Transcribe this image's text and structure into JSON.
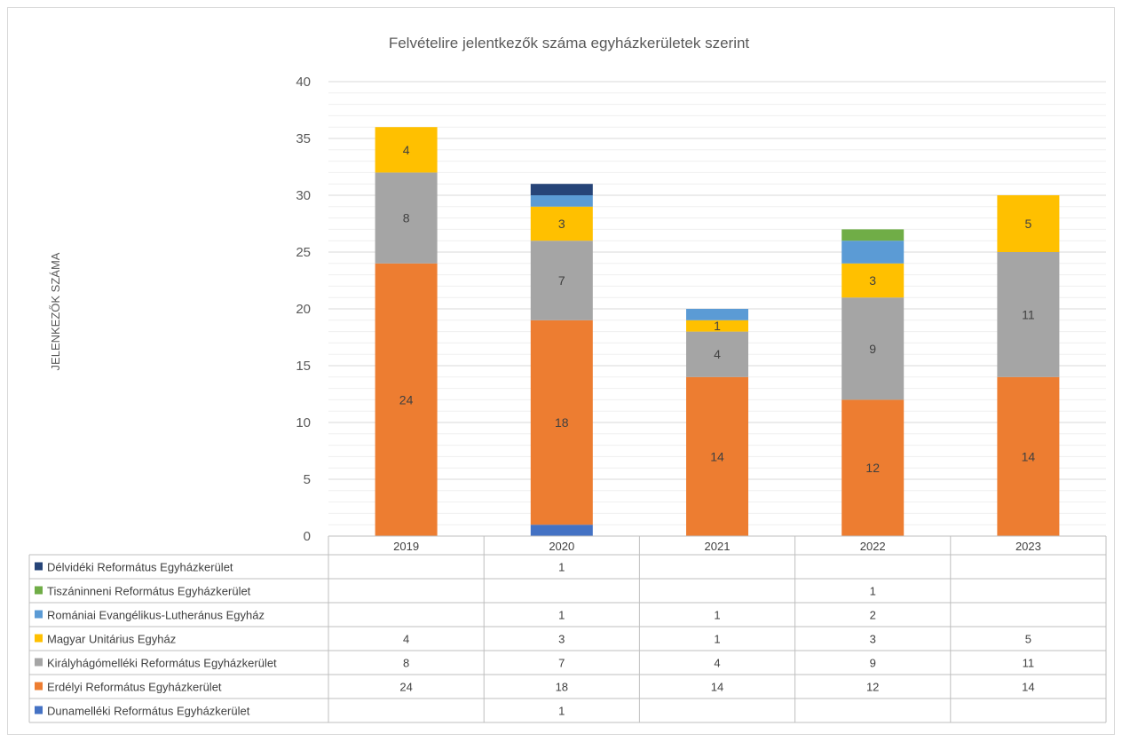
{
  "chart_data": {
    "type": "bar",
    "stacked": true,
    "title": "Felvételire jelentkezők száma egyházkerületek szerint",
    "xlabel": "",
    "ylabel": "JELENKEZŐK SZÁMA",
    "ylim": [
      0,
      40
    ],
    "yticks": [
      0,
      5,
      10,
      15,
      20,
      25,
      30,
      35,
      40
    ],
    "grid": true,
    "legend": "data-table",
    "categories": [
      "2019",
      "2020",
      "2021",
      "2022",
      "2023"
    ],
    "series": [
      {
        "name": "Dunamelléki Református Egyházkerület",
        "color": "#4472C4",
        "values": [
          null,
          1,
          null,
          null,
          null
        ]
      },
      {
        "name": "Erdélyi Református Egyházkerület",
        "color": "#ED7D31",
        "values": [
          24,
          18,
          14,
          12,
          14
        ]
      },
      {
        "name": "Királyhágómelléki Református Egyházkerület",
        "color": "#A5A5A5",
        "values": [
          8,
          7,
          4,
          9,
          11
        ]
      },
      {
        "name": "Magyar Unitárius Egyház",
        "color": "#FFC000",
        "values": [
          4,
          3,
          1,
          3,
          5
        ]
      },
      {
        "name": "Romániai Evangélikus-Lutheránus Egyház",
        "color": "#5B9BD5",
        "values": [
          null,
          1,
          1,
          2,
          null
        ]
      },
      {
        "name": "Tiszáninneni Református Egyházkerület",
        "color": "#70AD47",
        "values": [
          null,
          null,
          null,
          1,
          null
        ]
      },
      {
        "name": "Délvidéki Református Egyházkerület",
        "color": "#264478",
        "values": [
          null,
          1,
          null,
          null,
          null
        ]
      }
    ]
  }
}
